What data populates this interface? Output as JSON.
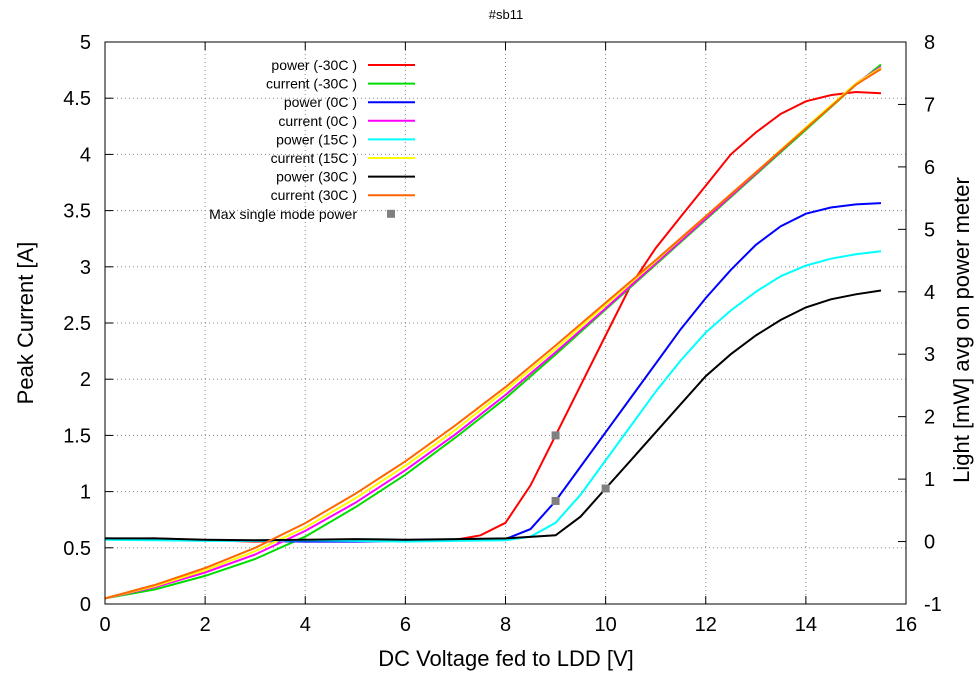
{
  "chart_data": {
    "type": "line",
    "title": "#sb11",
    "xlabel": "DC Voltage fed to LDD [V]",
    "ylabel": "Peak Current [A]",
    "y2label": "Light [mW] avg on power meter",
    "xlim": [
      0,
      16
    ],
    "ylim": [
      0,
      5
    ],
    "y2lim": [
      -1,
      8
    ],
    "x_ticks": [
      "0",
      "2",
      "4",
      "6",
      "8",
      "10",
      "12",
      "14",
      "16"
    ],
    "y_ticks": [
      "0",
      "0.5",
      "1",
      "1.5",
      "2",
      "2.5",
      "3",
      "3.5",
      "4",
      "4.5",
      "5"
    ],
    "y2_ticks": [
      "-1",
      "0",
      "1",
      "2",
      "3",
      "4",
      "5",
      "6",
      "7",
      "8"
    ],
    "grid": true,
    "legend_position": "top-left",
    "series": [
      {
        "name": "power (-30C )",
        "axis": "y2",
        "color": "#ff0000",
        "x": [
          0,
          1,
          2,
          3,
          4,
          5,
          6,
          7,
          7.5,
          8,
          8.5,
          9,
          9.5,
          10,
          10.5,
          11,
          11.5,
          12,
          12.5,
          13,
          13.5,
          14,
          14.5,
          15,
          15.5
        ],
        "y": [
          0.04,
          0.05,
          0.02,
          0.0,
          0.01,
          0.02,
          0.01,
          0.03,
          0.1,
          0.3,
          0.9,
          1.7,
          2.5,
          3.3,
          4.1,
          4.7,
          5.2,
          5.7,
          6.2,
          6.55,
          6.85,
          7.05,
          7.15,
          7.2,
          7.18
        ]
      },
      {
        "name": "current (-30C )",
        "axis": "y1",
        "color": "#00dd00",
        "x": [
          0,
          1,
          2,
          3,
          4,
          5,
          6,
          7,
          8,
          9,
          10,
          11,
          12,
          13,
          14,
          15,
          15.5
        ],
        "y": [
          0.05,
          0.13,
          0.25,
          0.4,
          0.6,
          0.86,
          1.15,
          1.48,
          1.83,
          2.22,
          2.62,
          3.02,
          3.42,
          3.82,
          4.22,
          4.62,
          4.8
        ]
      },
      {
        "name": "power (0C )",
        "axis": "y2",
        "color": "#0000ff",
        "x": [
          0,
          1,
          2,
          3,
          4,
          5,
          6,
          7,
          8,
          8.5,
          9,
          9.5,
          10,
          10.5,
          11,
          11.5,
          12,
          12.5,
          13,
          13.5,
          14,
          14.5,
          15,
          15.5
        ],
        "y": [
          0.05,
          0.04,
          0.02,
          0.01,
          0.0,
          0.0,
          0.01,
          0.02,
          0.04,
          0.2,
          0.65,
          1.2,
          1.75,
          2.3,
          2.85,
          3.4,
          3.9,
          4.35,
          4.75,
          5.05,
          5.25,
          5.35,
          5.4,
          5.42
        ]
      },
      {
        "name": "current (0C )",
        "axis": "y1",
        "color": "#ff00ff",
        "x": [
          0,
          1,
          2,
          3,
          4,
          5,
          6,
          7,
          8,
          9,
          10,
          11,
          12,
          13,
          14,
          15,
          15.5
        ],
        "y": [
          0.05,
          0.15,
          0.28,
          0.44,
          0.65,
          0.9,
          1.19,
          1.51,
          1.86,
          2.24,
          2.63,
          3.03,
          3.43,
          3.83,
          4.23,
          4.63,
          4.78
        ]
      },
      {
        "name": "power (15C )",
        "axis": "y2",
        "color": "#00ffff",
        "x": [
          0,
          1,
          2,
          3,
          4,
          5,
          6,
          7,
          8,
          8.5,
          9,
          9.5,
          10,
          10.5,
          11,
          11.5,
          12,
          12.5,
          13,
          13.5,
          14,
          14.5,
          15,
          15.5
        ],
        "y": [
          0.03,
          0.02,
          0.01,
          0.01,
          0.02,
          0.01,
          0.0,
          0.01,
          0.02,
          0.08,
          0.3,
          0.75,
          1.3,
          1.85,
          2.4,
          2.9,
          3.35,
          3.7,
          4.0,
          4.25,
          4.42,
          4.53,
          4.6,
          4.65
        ]
      },
      {
        "name": "current (15C )",
        "axis": "y1",
        "color": "#ffff00",
        "x": [
          0,
          1,
          2,
          3,
          4,
          5,
          6,
          7,
          8,
          9,
          10,
          11,
          12,
          13,
          14,
          15,
          15.5
        ],
        "y": [
          0.05,
          0.16,
          0.3,
          0.47,
          0.68,
          0.94,
          1.23,
          1.55,
          1.9,
          2.27,
          2.66,
          3.05,
          3.45,
          3.84,
          4.24,
          4.63,
          4.77
        ]
      },
      {
        "name": "power (30C )",
        "axis": "y2",
        "color": "#000000",
        "x": [
          0,
          1,
          2,
          3,
          4,
          5,
          6,
          7,
          8,
          9,
          9.5,
          10,
          10.5,
          11,
          11.5,
          12,
          12.5,
          13,
          13.5,
          14,
          14.5,
          15,
          15.5
        ],
        "y": [
          0.05,
          0.05,
          0.03,
          0.02,
          0.03,
          0.04,
          0.03,
          0.04,
          0.05,
          0.1,
          0.4,
          0.85,
          1.3,
          1.75,
          2.2,
          2.65,
          3.0,
          3.3,
          3.55,
          3.75,
          3.88,
          3.96,
          4.02
        ]
      },
      {
        "name": "current (30C )",
        "axis": "y1",
        "color": "#ff6600",
        "x": [
          0,
          1,
          2,
          3,
          4,
          5,
          6,
          7,
          8,
          9,
          10,
          11,
          12,
          13,
          14,
          15,
          15.5
        ],
        "y": [
          0.05,
          0.17,
          0.32,
          0.5,
          0.72,
          0.98,
          1.27,
          1.59,
          1.93,
          2.3,
          2.68,
          3.06,
          3.45,
          3.84,
          4.23,
          4.62,
          4.76
        ]
      },
      {
        "name": "Max single mode power",
        "axis": "y2",
        "color": "#808080",
        "style": "points",
        "x": [
          9,
          9,
          10
        ],
        "y": [
          1.7,
          0.65,
          0.85
        ]
      }
    ]
  }
}
